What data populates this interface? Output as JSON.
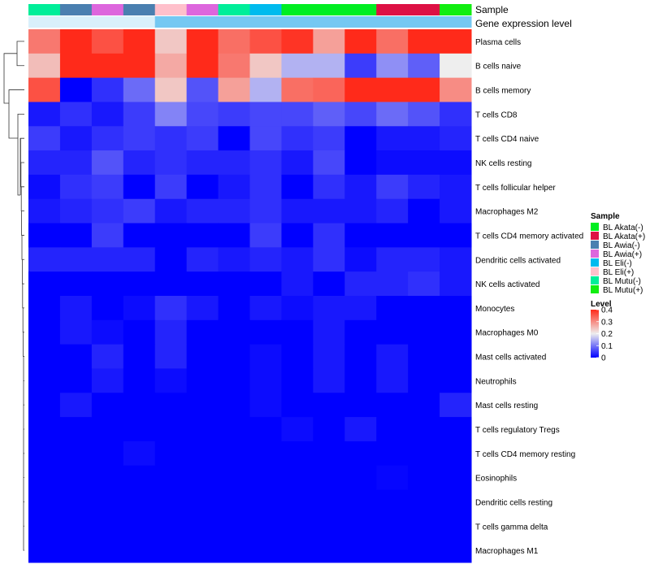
{
  "chart_data": {
    "type": "heatmap",
    "annotation_labels": [
      "Sample",
      "Gene expression level"
    ],
    "column_samples": [
      "BL Mutu(-)",
      "BL Awia(-)",
      "BL Awia(+)",
      "BL Awia(-)",
      "BL Eli(+)",
      "BL Awia(+)",
      "BL Mutu(-)",
      "BL Eli(-)",
      "BL Akata(-)",
      "BL Akata(-)",
      "BL Akata(-)",
      "BL Akata(+)",
      "BL Akata(+)",
      "BL Mutu(+)"
    ],
    "column_expression": [
      0.05,
      0.05,
      0.05,
      0.05,
      0.18,
      0.18,
      0.18,
      0.18,
      0.18,
      0.18,
      0.18,
      0.18,
      0.18,
      0.18
    ],
    "rows": [
      {
        "label": "Plasma cells",
        "values": [
          0.32,
          0.4,
          0.36,
          0.4,
          0.24,
          0.4,
          0.33,
          0.36,
          0.39,
          0.28,
          0.4,
          0.33,
          0.4,
          0.4
        ]
      },
      {
        "label": "B cells naive",
        "values": [
          0.25,
          0.42,
          0.42,
          0.4,
          0.27,
          0.42,
          0.32,
          0.24,
          0.15,
          0.15,
          0.05,
          0.12,
          0.08,
          0.2
        ]
      },
      {
        "label": "B cells memory",
        "values": [
          0.36,
          0.0,
          0.04,
          0.09,
          0.24,
          0.07,
          0.28,
          0.15,
          0.33,
          0.34,
          0.42,
          0.4,
          0.42,
          0.3
        ]
      },
      {
        "label": "T cells CD8",
        "values": [
          0.02,
          0.04,
          0.02,
          0.05,
          0.11,
          0.06,
          0.05,
          0.06,
          0.06,
          0.08,
          0.06,
          0.09,
          0.07,
          0.04
        ]
      },
      {
        "label": "T cells CD4 naive",
        "values": [
          0.05,
          0.02,
          0.04,
          0.05,
          0.04,
          0.05,
          0.0,
          0.06,
          0.04,
          0.05,
          0.0,
          0.02,
          0.02,
          0.03
        ]
      },
      {
        "label": "NK cells resting",
        "values": [
          0.03,
          0.03,
          0.07,
          0.03,
          0.04,
          0.03,
          0.03,
          0.04,
          0.02,
          0.06,
          0.0,
          0.01,
          0.01,
          0.01
        ]
      },
      {
        "label": "T cells follicular helper",
        "values": [
          0.01,
          0.04,
          0.05,
          0.0,
          0.05,
          0.0,
          0.02,
          0.04,
          0.0,
          0.04,
          0.02,
          0.05,
          0.03,
          0.02
        ]
      },
      {
        "label": "Macrophages M2",
        "values": [
          0.02,
          0.03,
          0.04,
          0.05,
          0.02,
          0.03,
          0.03,
          0.04,
          0.02,
          0.02,
          0.02,
          0.03,
          0.0,
          0.02
        ]
      },
      {
        "label": "T cells CD4 memory activated",
        "values": [
          0.0,
          0.0,
          0.05,
          0.0,
          0.0,
          0.0,
          0.0,
          0.05,
          0.0,
          0.04,
          0.0,
          0.0,
          0.0,
          0.0
        ]
      },
      {
        "label": "Dendritic cells activated",
        "values": [
          0.03,
          0.03,
          0.03,
          0.03,
          0.0,
          0.03,
          0.02,
          0.03,
          0.02,
          0.04,
          0.01,
          0.03,
          0.03,
          0.02
        ]
      },
      {
        "label": "NK cells activated",
        "values": [
          0.0,
          0.0,
          0.0,
          0.0,
          0.0,
          0.0,
          0.0,
          0.0,
          0.02,
          0.0,
          0.03,
          0.03,
          0.04,
          0.02
        ]
      },
      {
        "label": "Monocytes",
        "values": [
          0.0,
          0.02,
          0.0,
          0.01,
          0.04,
          0.02,
          0.0,
          0.02,
          0.01,
          0.02,
          0.02,
          0.0,
          0.0,
          0.0
        ]
      },
      {
        "label": "Macrophages M0",
        "values": [
          0.0,
          0.02,
          0.01,
          0.0,
          0.03,
          0.0,
          0.0,
          0.0,
          0.0,
          0.02,
          0.0,
          0.0,
          0.0,
          0.0
        ]
      },
      {
        "label": "Mast cells activated",
        "values": [
          0.0,
          0.0,
          0.03,
          0.0,
          0.03,
          0.0,
          0.0,
          0.01,
          0.0,
          0.02,
          0.0,
          0.02,
          0.0,
          0.0
        ]
      },
      {
        "label": "Neutrophils",
        "values": [
          0.0,
          0.0,
          0.02,
          0.0,
          0.01,
          0.0,
          0.0,
          0.01,
          0.0,
          0.02,
          0.0,
          0.02,
          0.0,
          0.0
        ]
      },
      {
        "label": "Mast cells resting",
        "values": [
          0.0,
          0.02,
          0.0,
          0.0,
          0.0,
          0.0,
          0.0,
          0.01,
          0.0,
          0.0,
          0.0,
          0.0,
          0.0,
          0.03
        ]
      },
      {
        "label": "T cells regulatory  Tregs",
        "values": [
          0.0,
          0.0,
          0.0,
          0.0,
          0.0,
          0.0,
          0.0,
          0.0,
          0.01,
          0.0,
          0.02,
          0.0,
          0.0,
          0.0
        ]
      },
      {
        "label": "T cells CD4 memory resting",
        "values": [
          0.0,
          0.0,
          0.0,
          0.01,
          0.0,
          0.0,
          0.0,
          0.0,
          0.0,
          0.0,
          0.0,
          0.0,
          0.0,
          0.0
        ]
      },
      {
        "label": "Eosinophils",
        "values": [
          0.0,
          0.0,
          0.0,
          0.0,
          0.0,
          0.0,
          0.0,
          0.0,
          0.0,
          0.0,
          0.0,
          0.005,
          0.0,
          0.0
        ]
      },
      {
        "label": "Dendritic cells resting",
        "values": [
          0.0,
          0.0,
          0.0,
          0.0,
          0.0,
          0.0,
          0.0,
          0.0,
          0.0,
          0.0,
          0.0,
          0.0,
          0.0,
          0.0
        ]
      },
      {
        "label": "T cells gamma delta",
        "values": [
          0.0,
          0.0,
          0.0,
          0.0,
          0.0,
          0.0,
          0.0,
          0.0,
          0.0,
          0.0,
          0.0,
          0.0,
          0.0,
          0.0
        ]
      },
      {
        "label": "Macrophages M1",
        "values": [
          0.0,
          0.0,
          0.0,
          0.0,
          0.0,
          0.0,
          0.0,
          0.0,
          0.0,
          0.0,
          0.0,
          0.0,
          0.0,
          0.0
        ]
      }
    ],
    "color_scale": {
      "min": 0,
      "mid": 0.2,
      "max": 0.4,
      "low_color": "#0000ff",
      "mid_color": "#eeeeee",
      "high_color": "#ff2a1a"
    },
    "expression_scale": {
      "min": 0,
      "max": 0.2,
      "low_color": "#ffffff",
      "high_color": "#66c2f0"
    },
    "legend": {
      "sample_title": "Sample",
      "samples": [
        {
          "name": "BL Akata(-)",
          "color": "#00ee22"
        },
        {
          "name": "BL Akata(+)",
          "color": "#dd1144"
        },
        {
          "name": "BL Awia(-)",
          "color": "#4a7fb0"
        },
        {
          "name": "BL Awia(+)",
          "color": "#dd66dd"
        },
        {
          "name": "BL Eli(-)",
          "color": "#00bbee"
        },
        {
          "name": "BL Eli(+)",
          "color": "#ffc0cb"
        },
        {
          "name": "BL Mutu(-)",
          "color": "#00ee99"
        },
        {
          "name": "BL Mutu(+)",
          "color": "#11ee11"
        }
      ],
      "level_title": "Level",
      "level_ticks": [
        {
          "label": "0.4",
          "value": 0.4
        },
        {
          "label": "0.3",
          "value": 0.3
        },
        {
          "label": "0.2",
          "value": 0.2
        },
        {
          "label": "0.1",
          "value": 0.1
        },
        {
          "label": "0",
          "value": 0
        }
      ]
    }
  }
}
